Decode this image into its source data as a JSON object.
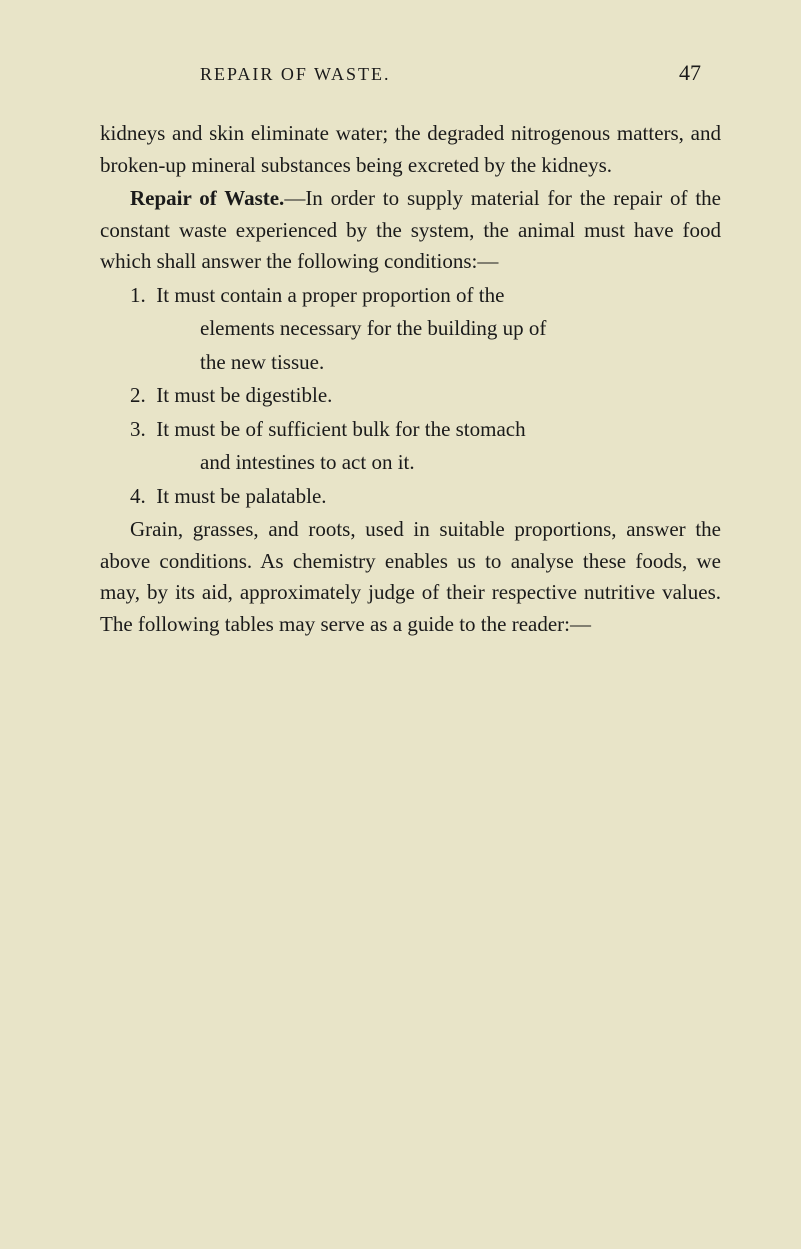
{
  "header": {
    "title": "REPAIR OF WASTE.",
    "pageNumber": "47"
  },
  "paragraphs": {
    "p1": "kidneys and skin eliminate water; the degraded nitro­genous matters, and broken-up mineral substances being excreted by the kidneys.",
    "p2_bold": "Repair of Waste.",
    "p2_text": "—In order to supply material for the repair of the constant waste experienced by the system, the animal must have food which shall answer the following conditions:—",
    "list": {
      "item1_num": "1.",
      "item1_text": "It must contain a proper proportion of the",
      "item1_cont1": "elements necessary for the building up of",
      "item1_cont2": "the new tissue.",
      "item2_num": "2.",
      "item2_text": "It must be digestible.",
      "item3_num": "3.",
      "item3_text": "It must be of sufficient bulk for the stomach",
      "item3_cont1": "and intestines to act on it.",
      "item4_num": "4.",
      "item4_text": "It must be palatable."
    },
    "p3": "Grain, grasses, and roots, used in suitable propor­tions, answer the above conditions. As chemistry enables us to analyse these foods, we may, by its aid, approximately judge of their respective nutritive values. The following tables may serve as a guide to the reader:—"
  },
  "styling": {
    "background_color": "#e8e4c8",
    "text_color": "#1a1a1a",
    "body_fontsize": 21,
    "header_fontsize": 18,
    "page_num_fontsize": 22,
    "font_family": "Georgia, Times New Roman, serif",
    "line_height": 1.5
  }
}
